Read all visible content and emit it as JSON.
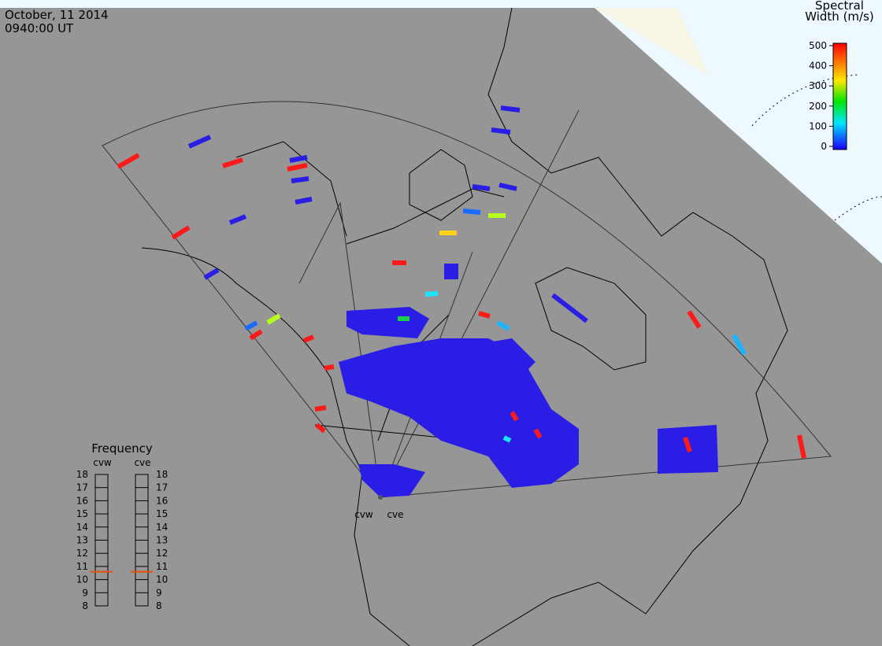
{
  "header": {
    "date": "October, 11 2014",
    "time": "0940:00 UT"
  },
  "colorbar": {
    "title": [
      "Spectral",
      "Width (m/s)"
    ],
    "ylim": [
      0,
      500
    ],
    "yticks": [
      0,
      100,
      200,
      300,
      400,
      500
    ]
  },
  "frequency": {
    "title": "Frequency",
    "ylim": [
      8,
      18
    ],
    "yticks": [
      8,
      9,
      10,
      11,
      12,
      13,
      14,
      15,
      16,
      17,
      18
    ],
    "radars": [
      {
        "name": "cvw",
        "value": 10.6
      },
      {
        "name": "cve",
        "value": 10.6
      }
    ]
  },
  "site_labels": [
    "cvw",
    "cve"
  ]
}
